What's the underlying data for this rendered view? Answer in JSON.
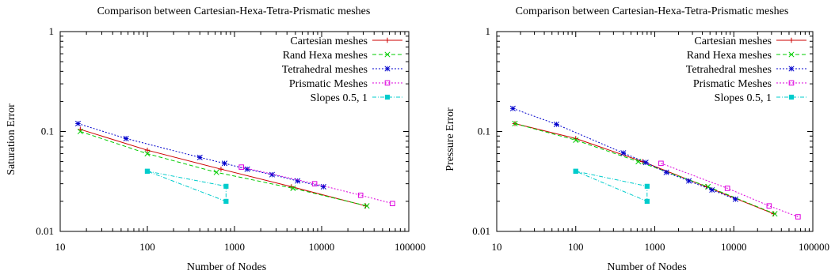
{
  "chart_data": [
    {
      "type": "line",
      "title": "Comparison between Cartesian-Hexa-Tetra-Prismatic meshes",
      "xlabel": "Number of Nodes",
      "ylabel": "Saturation Error",
      "xscale": "log",
      "yscale": "log",
      "xlim": [
        10,
        100000
      ],
      "ylim": [
        0.01,
        1
      ],
      "x_ticks": [
        "10",
        "100",
        "1000",
        "10000",
        "100000"
      ],
      "y_ticks": [
        "0.01",
        "0.1",
        "1"
      ],
      "legend_position": "top-right",
      "series": [
        {
          "name": "Cartesian meshes",
          "color": "#cc0000",
          "dash": "solid",
          "marker": "plus",
          "x": [
            17,
            100,
            700,
            4500,
            32000
          ],
          "y": [
            0.105,
            0.065,
            0.042,
            0.028,
            0.018
          ]
        },
        {
          "name": "Rand Hexa meshes",
          "color": "#00cc00",
          "dash": "dashed",
          "marker": "cross",
          "x": [
            17,
            100,
            620,
            4700,
            33000
          ],
          "y": [
            0.1,
            0.06,
            0.039,
            0.027,
            0.018
          ]
        },
        {
          "name": "Tetrahedral meshes",
          "color": "#0000cc",
          "dash": "dotted",
          "marker": "star",
          "x": [
            16,
            57,
            400,
            770,
            1400,
            2700,
            5300,
            10500
          ],
          "y": [
            0.12,
            0.085,
            0.055,
            0.048,
            0.042,
            0.037,
            0.032,
            0.028
          ]
        },
        {
          "name": "Prismatic Meshes",
          "color": "#dd00dd",
          "dash": "dotted",
          "marker": "square-open",
          "x": [
            1200,
            8300,
            28000,
            65000
          ],
          "y": [
            0.044,
            0.03,
            0.023,
            0.019
          ]
        },
        {
          "name": "Slopes 0.5, 1",
          "color": "#00cccc",
          "dash": "dashdot",
          "marker": "square-filled",
          "x": [
            100,
            800,
            800,
            100
          ],
          "y": [
            0.04,
            0.0283,
            0.02,
            0.04
          ]
        }
      ]
    },
    {
      "type": "line",
      "title": "Comparison between Cartesian-Hexa-Tetra-Prismatic meshes",
      "xlabel": "Number of Nodes",
      "ylabel": "Pressure Error",
      "xscale": "log",
      "yscale": "log",
      "xlim": [
        10,
        100000
      ],
      "ylim": [
        0.01,
        1
      ],
      "x_ticks": [
        "10",
        "100",
        "1000",
        "10000",
        "100000"
      ],
      "y_ticks": [
        "0.01",
        "0.1",
        "1"
      ],
      "legend_position": "top-right",
      "series": [
        {
          "name": "Cartesian meshes",
          "color": "#cc0000",
          "dash": "solid",
          "marker": "plus",
          "x": [
            17,
            100,
            700,
            4500,
            32000
          ],
          "y": [
            0.12,
            0.085,
            0.05,
            0.028,
            0.015
          ]
        },
        {
          "name": "Rand Hexa meshes",
          "color": "#00cc00",
          "dash": "dashed",
          "marker": "cross",
          "x": [
            17,
            100,
            620,
            4700,
            33000
          ],
          "y": [
            0.12,
            0.082,
            0.05,
            0.028,
            0.015
          ]
        },
        {
          "name": "Tetrahedral meshes",
          "color": "#0000cc",
          "dash": "dotted",
          "marker": "star",
          "x": [
            16,
            57,
            400,
            770,
            1400,
            2700,
            5300,
            10500
          ],
          "y": [
            0.17,
            0.118,
            0.061,
            0.049,
            0.039,
            0.032,
            0.026,
            0.021
          ]
        },
        {
          "name": "Prismatic Meshes",
          "color": "#dd00dd",
          "dash": "dotted",
          "marker": "square-open",
          "x": [
            1200,
            8300,
            28000,
            65000
          ],
          "y": [
            0.048,
            0.027,
            0.018,
            0.014
          ]
        },
        {
          "name": "Slopes 0.5, 1",
          "color": "#00cccc",
          "dash": "dashdot",
          "marker": "square-filled",
          "x": [
            100,
            800,
            800,
            100
          ],
          "y": [
            0.04,
            0.0283,
            0.02,
            0.04
          ]
        }
      ]
    }
  ]
}
